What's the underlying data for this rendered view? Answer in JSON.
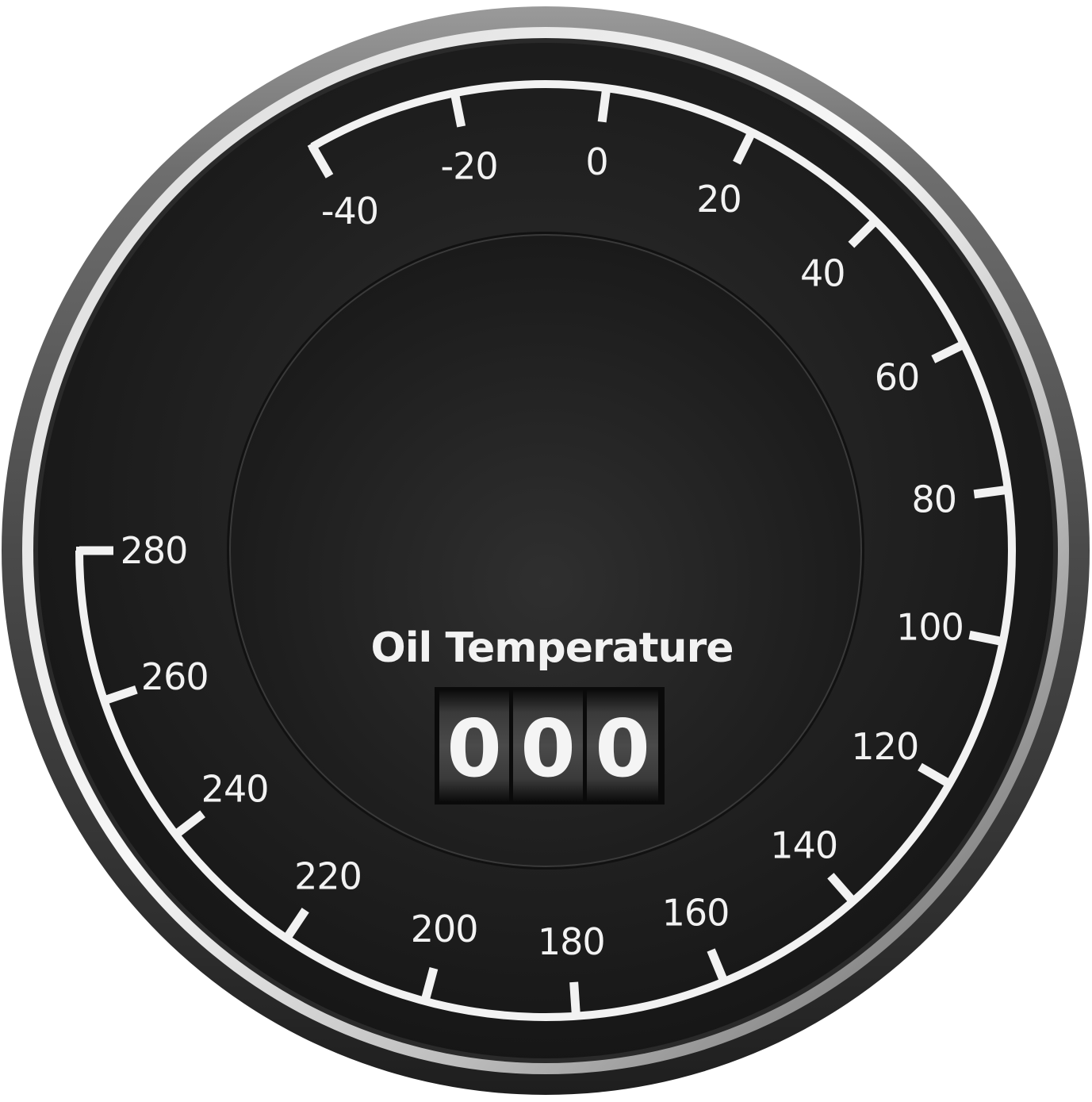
{
  "gauge": {
    "title": "Oil Temperature",
    "scale_min": -40,
    "scale_max": 280,
    "major_step": 20,
    "tick_labels": [
      "-40",
      "-20",
      "0",
      "20",
      "40",
      "60",
      "80",
      "100",
      "120",
      "140",
      "160",
      "180",
      "200",
      "220",
      "240",
      "260",
      "280"
    ],
    "odometer_digits": [
      "0",
      "0",
      "0"
    ]
  },
  "colors": {
    "dial_face": "#1b1b1b",
    "inner_face": "#262626",
    "bezel_light": "#d9d9d9",
    "bezel_dark": "#3c3c3c",
    "scale_white": "#f2f2f2"
  }
}
